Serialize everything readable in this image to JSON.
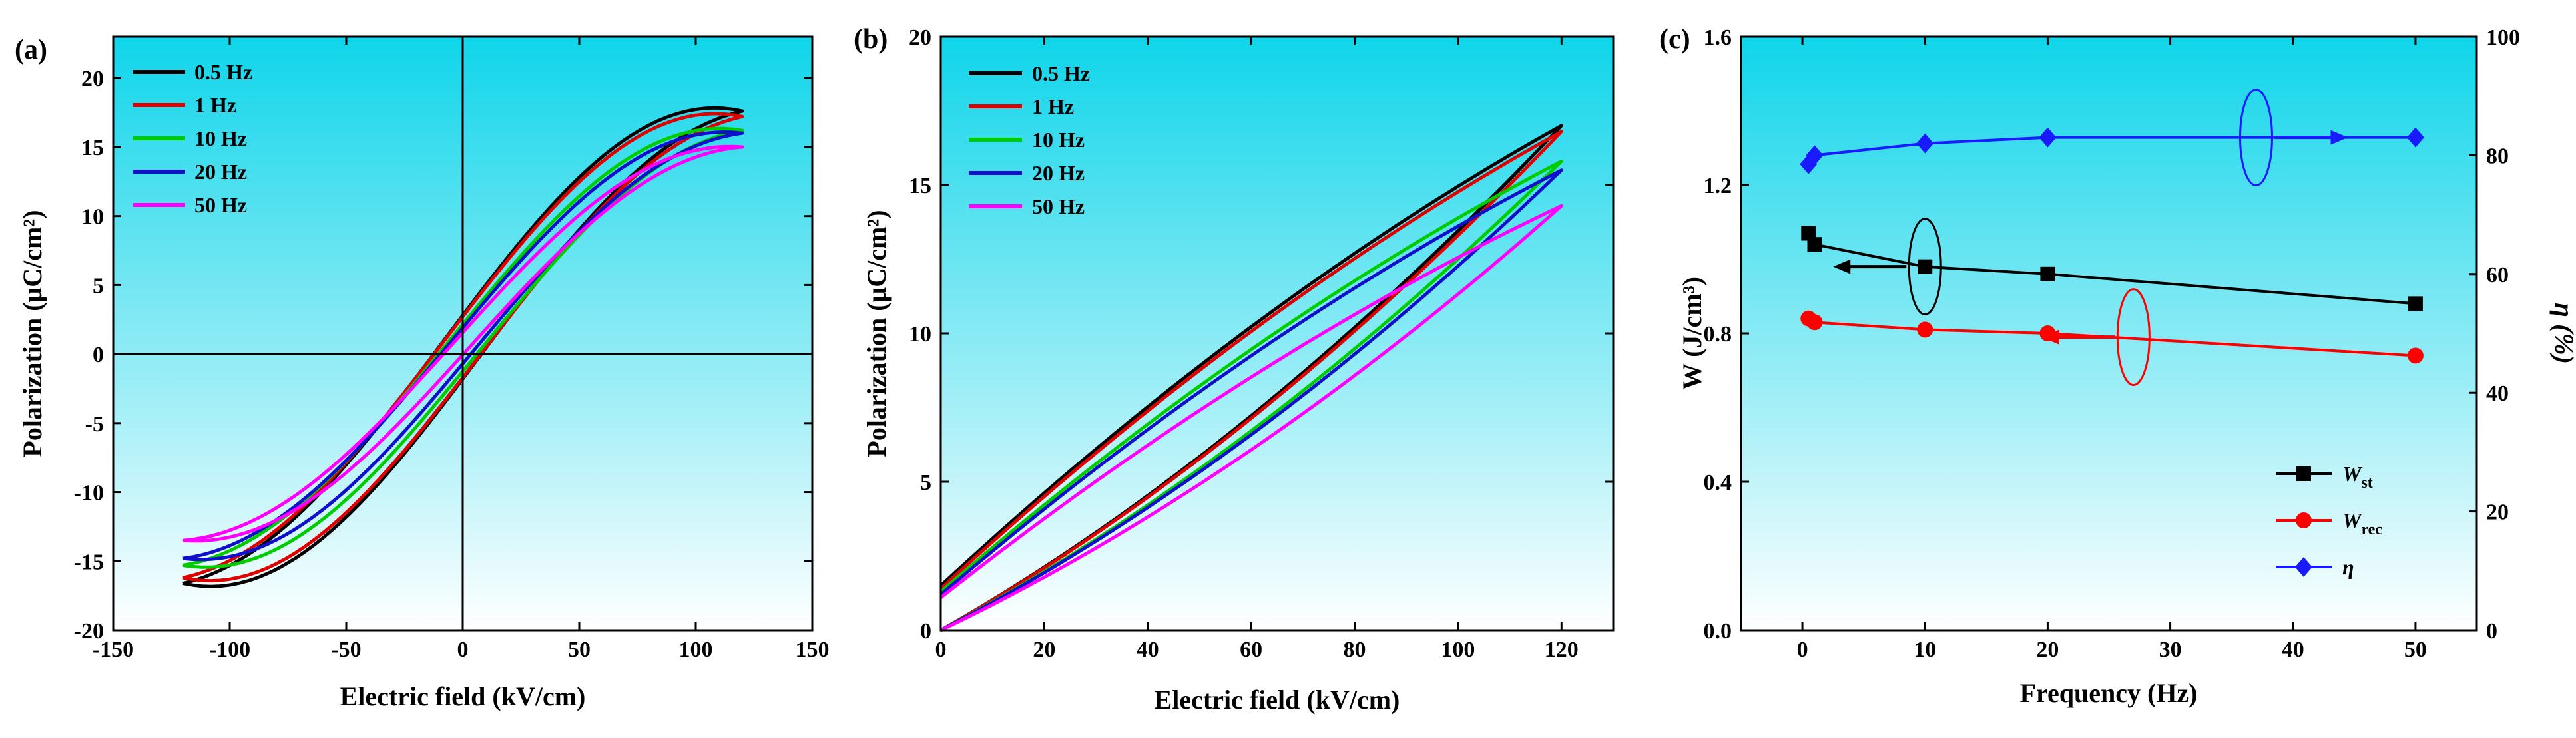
{
  "chart_data": [
    {
      "id": "a",
      "type": "line",
      "panel_label": "(a)",
      "xlabel": "Electric field (kV/cm)",
      "ylabel": "Polarization (μC/cm²)",
      "xlim": [
        -150,
        150
      ],
      "ylim": [
        -20,
        23
      ],
      "xticks": [
        -150,
        -100,
        -50,
        0,
        50,
        100,
        150
      ],
      "yticks": [
        -20,
        -15,
        -10,
        -5,
        0,
        5,
        10,
        15,
        20
      ],
      "xtick_labels": [
        "-150",
        "-100",
        "-50",
        "0",
        "50",
        "100",
        "150"
      ],
      "ytick_labels": [
        "-20",
        "-15",
        "-10",
        "-5",
        "0",
        "5",
        "10",
        "15",
        "20"
      ],
      "legend_position": "top-left",
      "series": [
        {
          "name": "0.5 Hz",
          "color": "#000000",
          "emax": 120,
          "pmax": 17.6,
          "pmin": -16.6,
          "pr": 2.3,
          "ec": 12
        },
        {
          "name": "1 Hz",
          "color": "#e00000",
          "emax": 120,
          "pmax": 17.2,
          "pmin": -16.2,
          "pr": 2.2,
          "ec": 12
        },
        {
          "name": "10 Hz",
          "color": "#00cc00",
          "emax": 120,
          "pmax": 16.2,
          "pmin": -15.3,
          "pr": 1.7,
          "ec": 11
        },
        {
          "name": "20 Hz",
          "color": "#1010cc",
          "emax": 120,
          "pmax": 16.0,
          "pmin": -14.8,
          "pr": 1.3,
          "ec": 10
        },
        {
          "name": "50 Hz",
          "color": "#ff00ff",
          "emax": 120,
          "pmax": 15.0,
          "pmin": -13.5,
          "pr": 0.8,
          "ec": 8
        }
      ]
    },
    {
      "id": "b",
      "type": "line",
      "panel_label": "(b)",
      "xlabel": "Electric field (kV/cm)",
      "ylabel": "Polarization (μC/cm²)",
      "xlim": [
        0,
        130
      ],
      "ylim": [
        0,
        20
      ],
      "xticks": [
        0,
        20,
        40,
        60,
        80,
        100,
        120
      ],
      "yticks": [
        0,
        5,
        10,
        15,
        20
      ],
      "xtick_labels": [
        "0",
        "20",
        "40",
        "60",
        "80",
        "100",
        "120"
      ],
      "ytick_labels": [
        "0",
        "5",
        "10",
        "15",
        "20"
      ],
      "legend_position": "top-left",
      "series": [
        {
          "name": "0.5 Hz",
          "color": "#000000",
          "emax": 120,
          "pmax": 17.0,
          "pr": 1.5
        },
        {
          "name": "1 Hz",
          "color": "#e00000",
          "emax": 120,
          "pmax": 16.8,
          "pr": 1.4
        },
        {
          "name": "10 Hz",
          "color": "#00cc00",
          "emax": 120,
          "pmax": 15.8,
          "pr": 1.3
        },
        {
          "name": "20 Hz",
          "color": "#1010cc",
          "emax": 120,
          "pmax": 15.5,
          "pr": 1.2
        },
        {
          "name": "50 Hz",
          "color": "#ff00ff",
          "emax": 120,
          "pmax": 14.3,
          "pr": 1.1
        }
      ]
    },
    {
      "id": "c",
      "type": "line",
      "panel_label": "(c)",
      "xlabel": "Frequency (Hz)",
      "ylabel": "W (J/cm³)",
      "y2label": "η (%)",
      "xlim": [
        -5,
        55
      ],
      "ylim": [
        0,
        1.6
      ],
      "y2lim": [
        0,
        100
      ],
      "xticks": [
        0,
        10,
        20,
        30,
        40,
        50
      ],
      "yticks": [
        0,
        0.4,
        0.8,
        1.2,
        1.6
      ],
      "y2ticks": [
        0,
        20,
        40,
        60,
        80,
        100
      ],
      "xtick_labels": [
        "0",
        "10",
        "20",
        "30",
        "40",
        "50"
      ],
      "ytick_labels": [
        "0.0",
        "0.4",
        "0.8",
        "1.2",
        "1.6"
      ],
      "y2tick_labels": [
        "0",
        "20",
        "40",
        "60",
        "80",
        "100"
      ],
      "legend_position": "bottom-right",
      "x": [
        0.5,
        1,
        10,
        20,
        50
      ],
      "series": [
        {
          "name": "Wst",
          "label_main": "W",
          "label_sub": "st",
          "axis": "left",
          "color": "#000000",
          "marker": "square",
          "values": [
            1.07,
            1.04,
            0.98,
            0.96,
            0.88
          ]
        },
        {
          "name": "Wrec",
          "label_main": "W",
          "label_sub": "rec",
          "axis": "left",
          "color": "#ff0000",
          "marker": "circle",
          "values": [
            0.84,
            0.83,
            0.81,
            0.8,
            0.74
          ]
        },
        {
          "name": "η",
          "label_main": "η",
          "label_sub": "",
          "axis": "right",
          "color": "#1a1aff",
          "marker": "diamond",
          "values": [
            78.5,
            80,
            82,
            83,
            83
          ]
        }
      ],
      "annotations": [
        {
          "type": "ellipse",
          "color": "#1a1aff",
          "x": 37,
          "y2": 83,
          "points_to": "right"
        },
        {
          "type": "ellipse",
          "color": "#000000",
          "x": 10,
          "y": 0.98,
          "points_to": "left"
        },
        {
          "type": "ellipse",
          "color": "#ff0000",
          "x": 27,
          "y": 0.79,
          "points_to": "left"
        }
      ]
    }
  ]
}
